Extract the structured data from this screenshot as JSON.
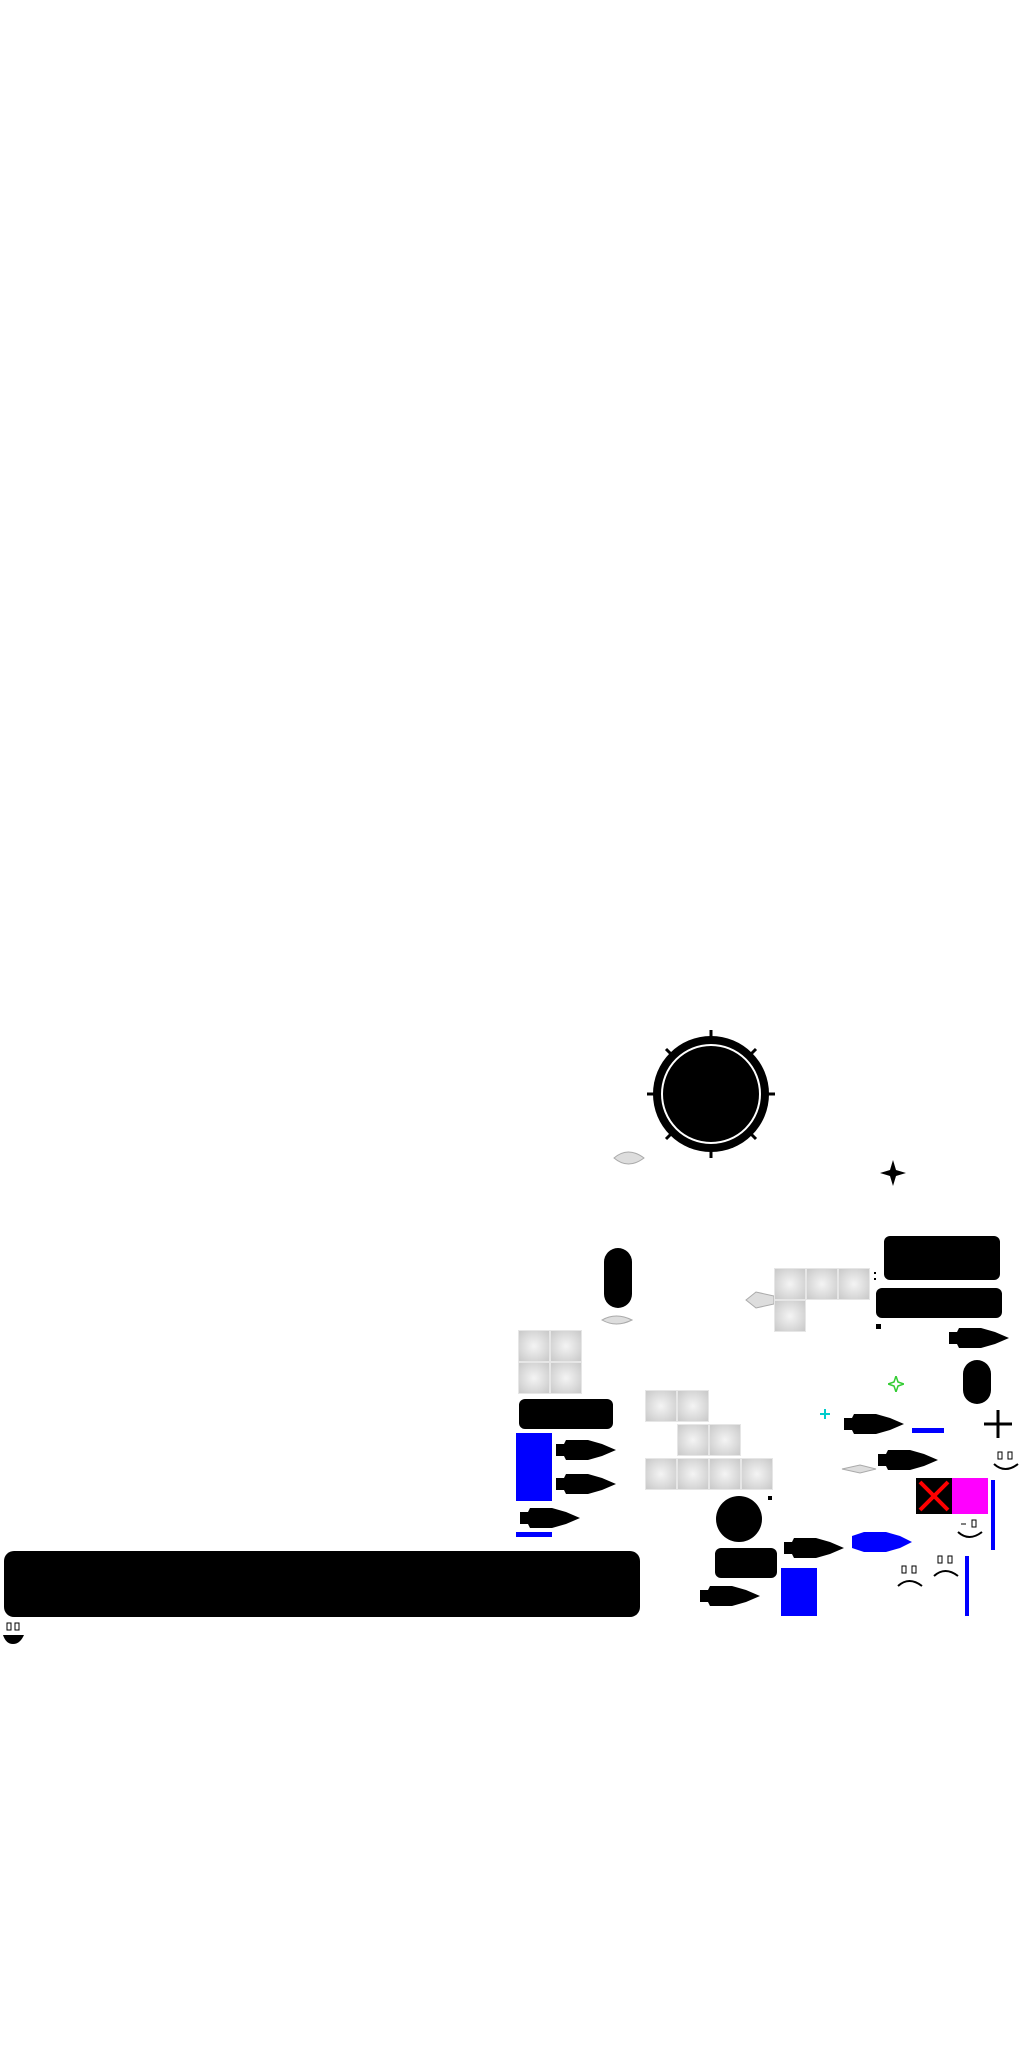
{
  "scene": {
    "background": "#ffffff",
    "colors": {
      "primary": "#000000",
      "accent_blue": "#0000ff",
      "accent_magenta": "#ff00ff",
      "alert_red": "#ff0000",
      "tile_gray": "#d6d6d6",
      "sparkle_green": "#33cc33",
      "sparkle_cyan": "#00cccc"
    },
    "icons": {
      "planet": "planet-icon",
      "ship": "ship-icon",
      "star": "star-icon",
      "crosshair": "crosshair-icon",
      "face_happy": "happy-face-icon",
      "face_sad": "sad-face-icon",
      "blocked": "red-x-icon"
    }
  }
}
